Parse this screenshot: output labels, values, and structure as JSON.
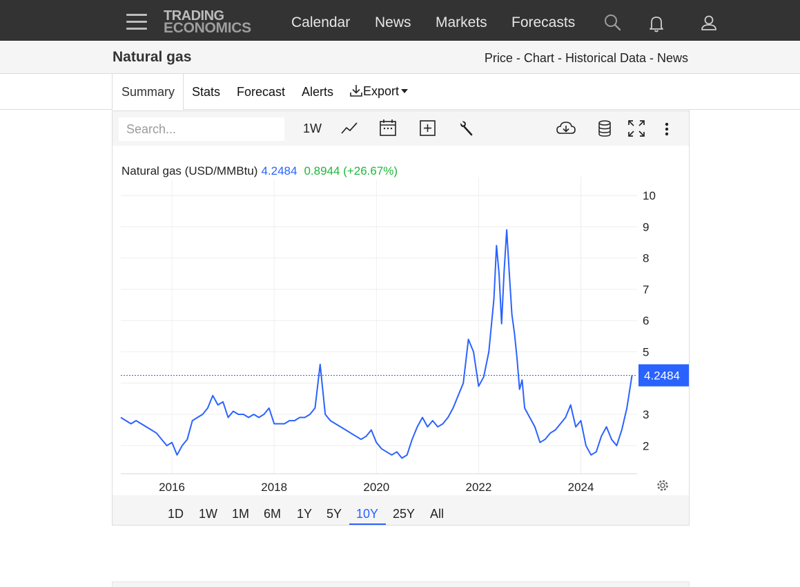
{
  "nav": {
    "logo_line1": "TRADING",
    "logo_line2": "ECONOMICS",
    "links": [
      "Calendar",
      "News",
      "Markets",
      "Forecasts"
    ]
  },
  "header": {
    "title": "Natural gas",
    "links": [
      "Price",
      "Chart",
      "Historical Data",
      "News"
    ],
    "separator": " - "
  },
  "tabs": [
    "Summary",
    "Stats",
    "Forecast",
    "Alerts",
    "Export"
  ],
  "toolbar": {
    "search_placeholder": "Search...",
    "interval": "1W"
  },
  "chart_legend": {
    "name": "Natural gas (USD/MMBtu)",
    "last_value": "4.2484",
    "change": "0.8944 (+26.67%)"
  },
  "ranges": [
    "1D",
    "1W",
    "1M",
    "6M",
    "1Y",
    "5Y",
    "10Y",
    "25Y",
    "All"
  ],
  "active_range": "10Y",
  "colors": {
    "line": "#2962ff",
    "positive": "#1fb83a",
    "nav_bg": "#333333"
  },
  "chart_data": {
    "type": "line",
    "title": "Natural gas (USD/MMBtu)",
    "xlabel": "",
    "ylabel": "",
    "ylim": [
      1.1,
      10.6
    ],
    "xlim": [
      2015.0,
      2025.1
    ],
    "x_ticks": [
      "2016",
      "2018",
      "2020",
      "2022",
      "2024"
    ],
    "y_ticks": [
      2,
      3,
      5,
      6,
      7,
      8,
      9,
      10
    ],
    "last_value_label": "4.2484",
    "grid": true,
    "series": [
      {
        "name": "Natural gas",
        "x": [
          2015.0,
          2015.1,
          2015.2,
          2015.3,
          2015.4,
          2015.5,
          2015.6,
          2015.7,
          2015.8,
          2015.9,
          2016.0,
          2016.1,
          2016.2,
          2016.3,
          2016.4,
          2016.5,
          2016.6,
          2016.7,
          2016.8,
          2016.9,
          2017.0,
          2017.1,
          2017.2,
          2017.3,
          2017.4,
          2017.5,
          2017.6,
          2017.7,
          2017.8,
          2017.9,
          2018.0,
          2018.1,
          2018.2,
          2018.3,
          2018.4,
          2018.5,
          2018.6,
          2018.7,
          2018.8,
          2018.9,
          2019.0,
          2019.1,
          2019.2,
          2019.3,
          2019.4,
          2019.5,
          2019.6,
          2019.7,
          2019.8,
          2019.9,
          2020.0,
          2020.1,
          2020.2,
          2020.3,
          2020.4,
          2020.5,
          2020.6,
          2020.7,
          2020.8,
          2020.9,
          2021.0,
          2021.1,
          2021.2,
          2021.3,
          2021.4,
          2021.5,
          2021.6,
          2021.7,
          2021.8,
          2021.9,
          2022.0,
          2022.1,
          2022.2,
          2022.3,
          2022.35,
          2022.4,
          2022.45,
          2022.5,
          2022.55,
          2022.6,
          2022.65,
          2022.7,
          2022.75,
          2022.8,
          2022.85,
          2022.9,
          2023.0,
          2023.1,
          2023.2,
          2023.3,
          2023.4,
          2023.5,
          2023.6,
          2023.7,
          2023.8,
          2023.9,
          2024.0,
          2024.1,
          2024.2,
          2024.3,
          2024.4,
          2024.5,
          2024.6,
          2024.7,
          2024.8,
          2024.9,
          2025.0
        ],
        "values": [
          2.9,
          2.8,
          2.7,
          2.8,
          2.7,
          2.6,
          2.5,
          2.4,
          2.2,
          2.0,
          2.1,
          1.7,
          2.0,
          2.2,
          2.8,
          2.9,
          3.0,
          3.2,
          3.6,
          3.3,
          3.4,
          2.9,
          3.1,
          3.0,
          3.0,
          2.9,
          3.0,
          2.9,
          3.0,
          3.2,
          2.7,
          2.7,
          2.7,
          2.8,
          2.8,
          2.9,
          2.9,
          3.0,
          3.2,
          4.6,
          3.0,
          2.8,
          2.7,
          2.6,
          2.5,
          2.4,
          2.3,
          2.2,
          2.3,
          2.5,
          2.1,
          1.9,
          1.8,
          1.7,
          1.8,
          1.6,
          1.7,
          2.2,
          2.6,
          2.9,
          2.6,
          2.8,
          2.6,
          2.7,
          2.9,
          3.2,
          3.6,
          4.0,
          5.4,
          5.0,
          3.9,
          4.2,
          5.0,
          6.7,
          8.4,
          7.5,
          5.9,
          7.6,
          8.9,
          7.5,
          6.2,
          5.6,
          4.8,
          3.8,
          4.1,
          3.2,
          2.9,
          2.6,
          2.1,
          2.2,
          2.4,
          2.5,
          2.7,
          2.9,
          3.3,
          2.6,
          2.8,
          2.0,
          1.7,
          1.8,
          2.3,
          2.6,
          2.2,
          2.0,
          2.5,
          3.2,
          4.2484
        ]
      }
    ]
  }
}
